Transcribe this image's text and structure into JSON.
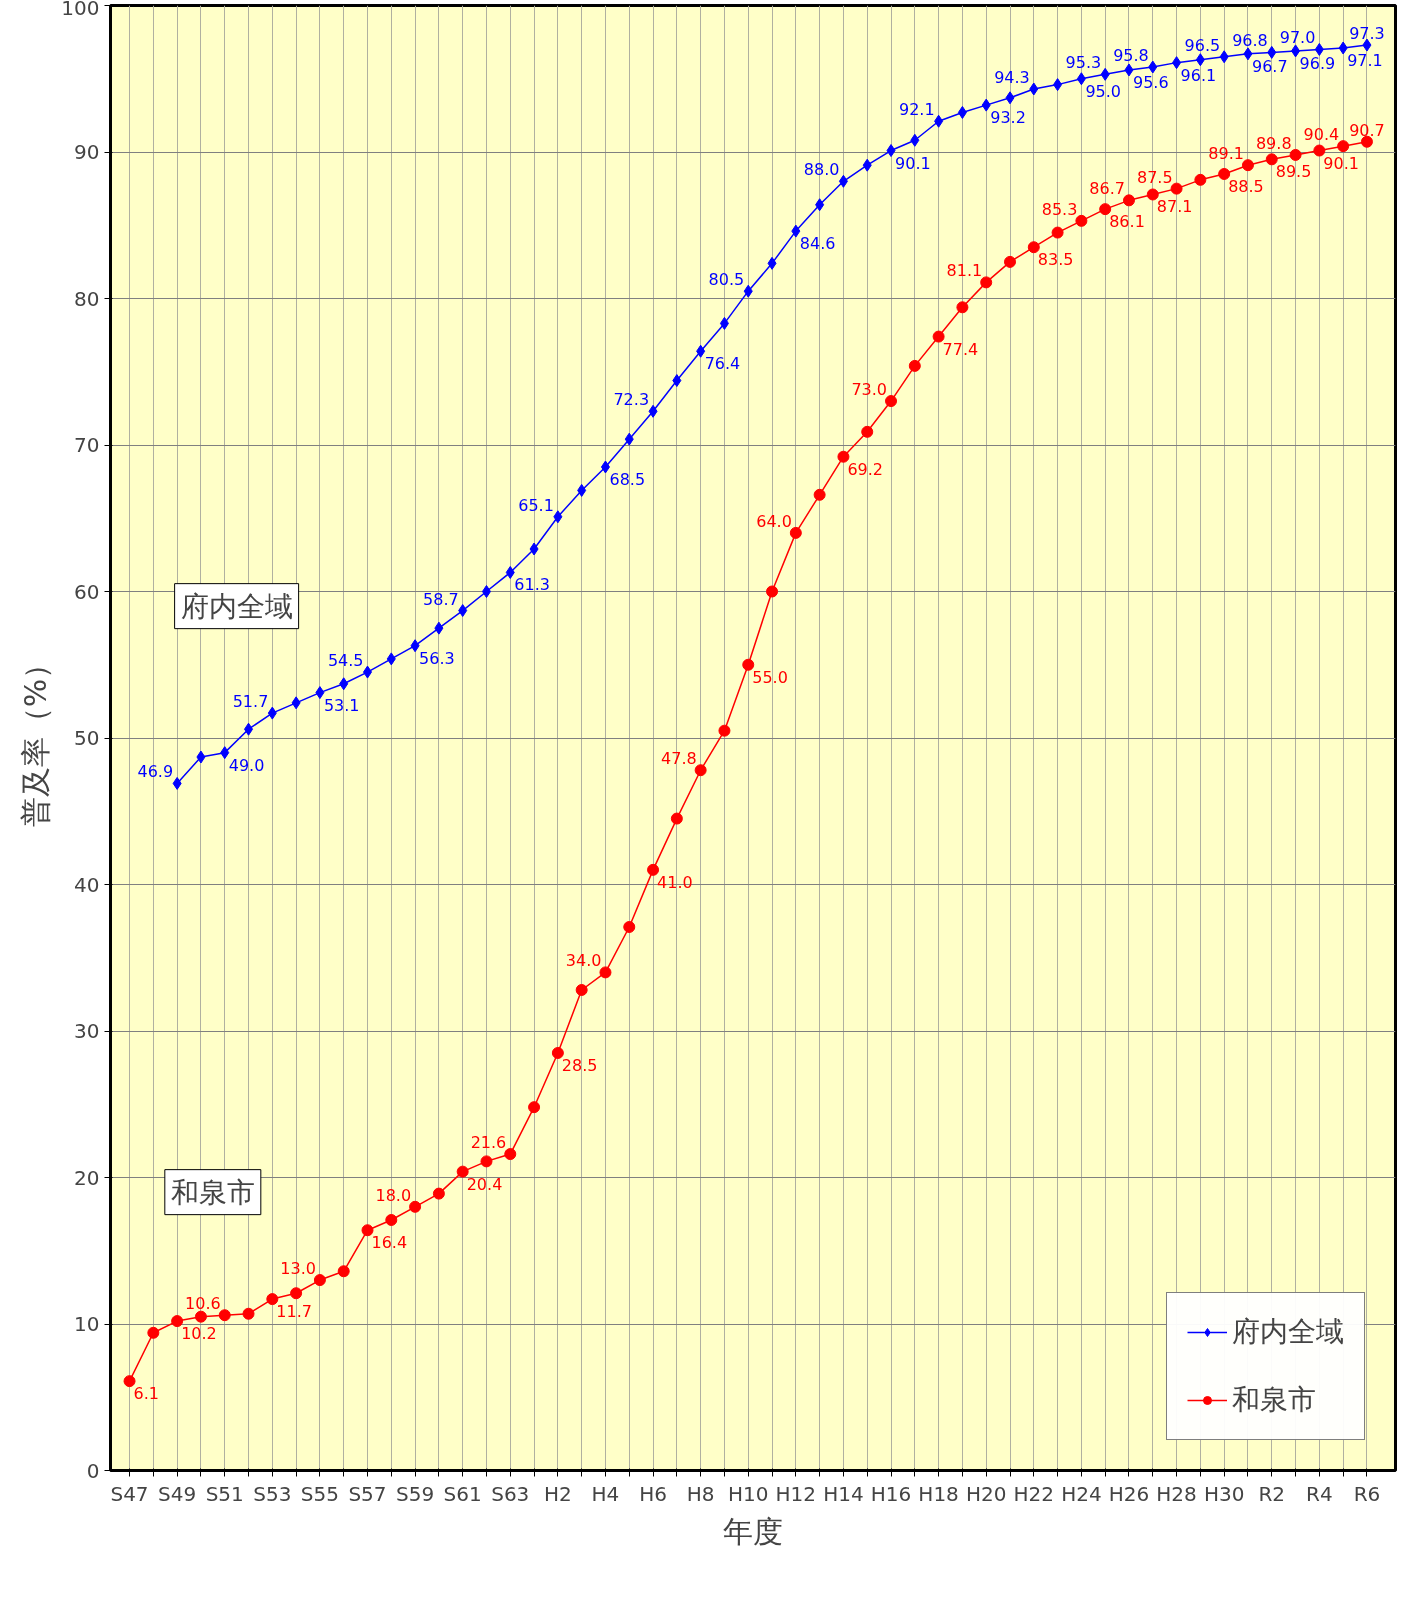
{
  "chart_data": {
    "type": "line",
    "xlabel": "年度",
    "ylabel": "普及率（%）",
    "categories": [
      "S47",
      null,
      "S49",
      null,
      "S51",
      null,
      "S53",
      null,
      "S55",
      null,
      "S57",
      null,
      "S59",
      null,
      "S61",
      null,
      "S63",
      null,
      "H2",
      null,
      "H4",
      null,
      "H6",
      null,
      "H8",
      null,
      "H10",
      null,
      "H12",
      null,
      "H14",
      null,
      "H16",
      null,
      "H18",
      null,
      "H20",
      null,
      "H22",
      null,
      "H24",
      null,
      "H26",
      null,
      "H28",
      null,
      "H30",
      null,
      "R2",
      null,
      "R4",
      null,
      "R6"
    ],
    "ylim": [
      0,
      100
    ],
    "yticks": [
      0,
      10,
      20,
      30,
      40,
      50,
      60,
      70,
      80,
      90,
      100
    ],
    "grid": true,
    "legend": "bottom right",
    "series": [
      {
        "name": "府内全域",
        "color": "#0000ff",
        "marker": "diamond",
        "values": [
          null,
          null,
          46.9,
          48.7,
          49.0,
          50.6,
          51.7,
          52.4,
          53.1,
          53.7,
          54.5,
          55.4,
          56.3,
          57.5,
          58.7,
          60.0,
          61.3,
          62.9,
          65.1,
          66.9,
          68.5,
          70.4,
          72.3,
          74.4,
          76.4,
          78.3,
          80.5,
          82.4,
          84.6,
          86.4,
          88.0,
          89.1,
          90.1,
          90.8,
          92.1,
          92.7,
          93.2,
          93.7,
          94.3,
          94.6,
          95.0,
          95.3,
          95.6,
          95.8,
          96.1,
          96.3,
          96.5,
          96.7,
          96.8,
          96.9,
          97.0,
          97.1,
          97.3
        ],
        "value_labels": [
          null,
          null,
          "46.9",
          null,
          "49.0",
          null,
          "51.7",
          null,
          "53.1",
          null,
          "54.5",
          null,
          "56.3",
          null,
          "58.7",
          null,
          "61.3",
          null,
          "65.1",
          null,
          "68.5",
          null,
          "72.3",
          null,
          "76.4",
          null,
          "80.5",
          null,
          "84.6",
          null,
          "88.0",
          null,
          "90.1",
          null,
          "92.1",
          null,
          "93.2",
          null,
          "94.3",
          null,
          "95.0",
          "95.3",
          "95.6",
          "95.8",
          "96.1",
          null,
          "96.5",
          "96.7",
          "96.8",
          "96.9",
          "97.0",
          "97.1",
          "97.3"
        ]
      },
      {
        "name": "和泉市",
        "color": "#ff0000",
        "marker": "circle",
        "values": [
          6.1,
          9.4,
          10.2,
          10.5,
          10.6,
          10.7,
          11.7,
          12.1,
          13.0,
          13.6,
          16.4,
          17.1,
          18.0,
          18.9,
          20.4,
          21.1,
          21.6,
          24.8,
          28.5,
          32.8,
          34.0,
          37.1,
          41.0,
          44.5,
          47.8,
          50.5,
          55.0,
          60.0,
          64.0,
          66.6,
          69.2,
          70.9,
          73.0,
          75.4,
          77.4,
          79.4,
          81.1,
          82.5,
          83.5,
          84.5,
          85.3,
          86.1,
          86.7,
          87.1,
          87.5,
          88.1,
          88.5,
          89.1,
          89.5,
          89.8,
          90.1,
          90.4,
          90.7
        ],
        "value_labels": [
          "6.1",
          null,
          "10.2",
          null,
          "10.6",
          null,
          "11.7",
          null,
          "13.0",
          null,
          "16.4",
          null,
          "18.0",
          null,
          "20.4",
          null,
          "21.6",
          null,
          "28.5",
          null,
          "34.0",
          null,
          "41.0",
          null,
          "47.8",
          null,
          "55.0",
          null,
          "64.0",
          null,
          "69.2",
          null,
          "73.0",
          null,
          "77.4",
          null,
          "81.1",
          null,
          "83.5",
          null,
          "85.3",
          "86.1",
          "86.7",
          "87.1",
          "87.5",
          null,
          "88.5",
          "89.1",
          "89.5",
          "89.8",
          "90.1",
          "90.4",
          "90.7"
        ]
      }
    ],
    "annotations": [
      "府内全域",
      "和泉市"
    ]
  }
}
